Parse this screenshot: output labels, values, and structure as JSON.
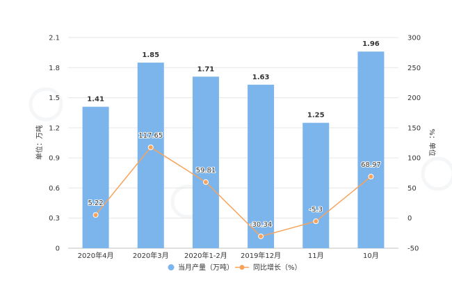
{
  "chart_data": {
    "type": "bar",
    "categories": [
      "2020年4月",
      "2020年3月",
      "2020年1-2月",
      "2019年12月",
      "11月",
      "10月"
    ],
    "series": [
      {
        "name": "当月产量（万吨）",
        "type": "bar",
        "axis": "left",
        "values": [
          1.41,
          1.85,
          1.71,
          1.63,
          1.25,
          1.96
        ],
        "labels": [
          "1.41",
          "1.85",
          "1.71",
          "1.63",
          "1.25",
          "1.96"
        ],
        "color": "#7cb5ec"
      },
      {
        "name": "同比增长（%）",
        "type": "line",
        "axis": "right",
        "values": [
          5.22,
          117.65,
          59.81,
          -30.34,
          -5.3,
          68.97
        ],
        "labels": [
          "5.22",
          "117.65",
          "59.81",
          "-30.34",
          "-5.3",
          "68.97"
        ],
        "color": "#f7a35c"
      }
    ],
    "ylabel": "单位：万吨",
    "y2label": "%：单位",
    "ylim": [
      0,
      2.1
    ],
    "y2lim": [
      -50,
      300
    ],
    "yticks": [
      "0",
      "0.3",
      "0.6",
      "0.9",
      "1.2",
      "1.5",
      "1.8",
      "2.1"
    ],
    "y2ticks": [
      "-50",
      "0",
      "50",
      "100",
      "150",
      "200",
      "250",
      "300"
    ],
    "grid": true,
    "legend_position": "bottom"
  }
}
